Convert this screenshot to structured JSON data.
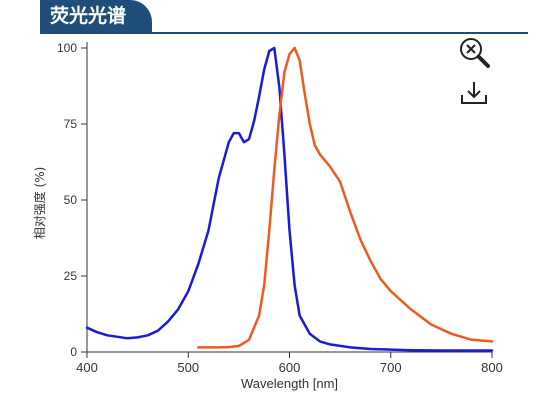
{
  "header": {
    "title": "荧光光谱"
  },
  "toolbar": {
    "zoom_icon": "zoom-reset-icon",
    "download_icon": "download-icon"
  },
  "colors": {
    "header": "#1f4e79",
    "excitation": "#1a1adb",
    "emission": "#f05a22",
    "axis": "#333333"
  },
  "chart_data": {
    "type": "line",
    "title": "",
    "xlabel": "Wavelength [nm]",
    "ylabel": "相对强度 (%)",
    "xlim": [
      400,
      800
    ],
    "ylim": [
      0,
      100
    ],
    "xticks": [
      400,
      500,
      600,
      700,
      800
    ],
    "yticks": [
      0,
      25,
      50,
      75,
      100
    ],
    "xtick_labels": [
      "400",
      "500",
      "600",
      "700",
      "800"
    ],
    "ytick_labels": [
      "0",
      "25",
      "50",
      "75",
      "100"
    ],
    "grid": false,
    "legend": "none",
    "series": [
      {
        "key": "excitation",
        "color": "#1a1adb",
        "x": [
          400,
          410,
          420,
          430,
          440,
          450,
          460,
          470,
          480,
          490,
          500,
          510,
          520,
          530,
          540,
          545,
          550,
          555,
          560,
          565,
          570,
          575,
          580,
          585,
          590,
          595,
          600,
          605,
          610,
          620,
          630,
          640,
          650,
          660,
          680,
          700,
          720,
          750,
          780,
          800
        ],
        "y": [
          8,
          6.5,
          5.5,
          5,
          4.5,
          4.8,
          5.5,
          7,
          10,
          14,
          20,
          29,
          40,
          57,
          69,
          72,
          72,
          69,
          70,
          76,
          84,
          93,
          99,
          100,
          87,
          65,
          40,
          22,
          12,
          6,
          3.5,
          2.5,
          2,
          1.5,
          1,
          0.8,
          0.6,
          0.5,
          0.5,
          0.5
        ]
      },
      {
        "key": "emission",
        "color": "#f05a22",
        "x": [
          510,
          520,
          530,
          540,
          550,
          560,
          570,
          575,
          580,
          585,
          590,
          595,
          600,
          605,
          610,
          615,
          620,
          625,
          630,
          640,
          650,
          660,
          670,
          680,
          690,
          700,
          720,
          740,
          760,
          780,
          800
        ],
        "y": [
          1.5,
          1.5,
          1.5,
          1.6,
          2,
          4,
          12,
          22,
          40,
          60,
          78,
          92,
          98,
          100,
          96,
          85,
          75,
          68,
          65,
          61,
          56,
          46,
          37,
          30,
          24,
          20,
          14,
          9,
          6,
          4,
          3.5
        ]
      }
    ]
  }
}
